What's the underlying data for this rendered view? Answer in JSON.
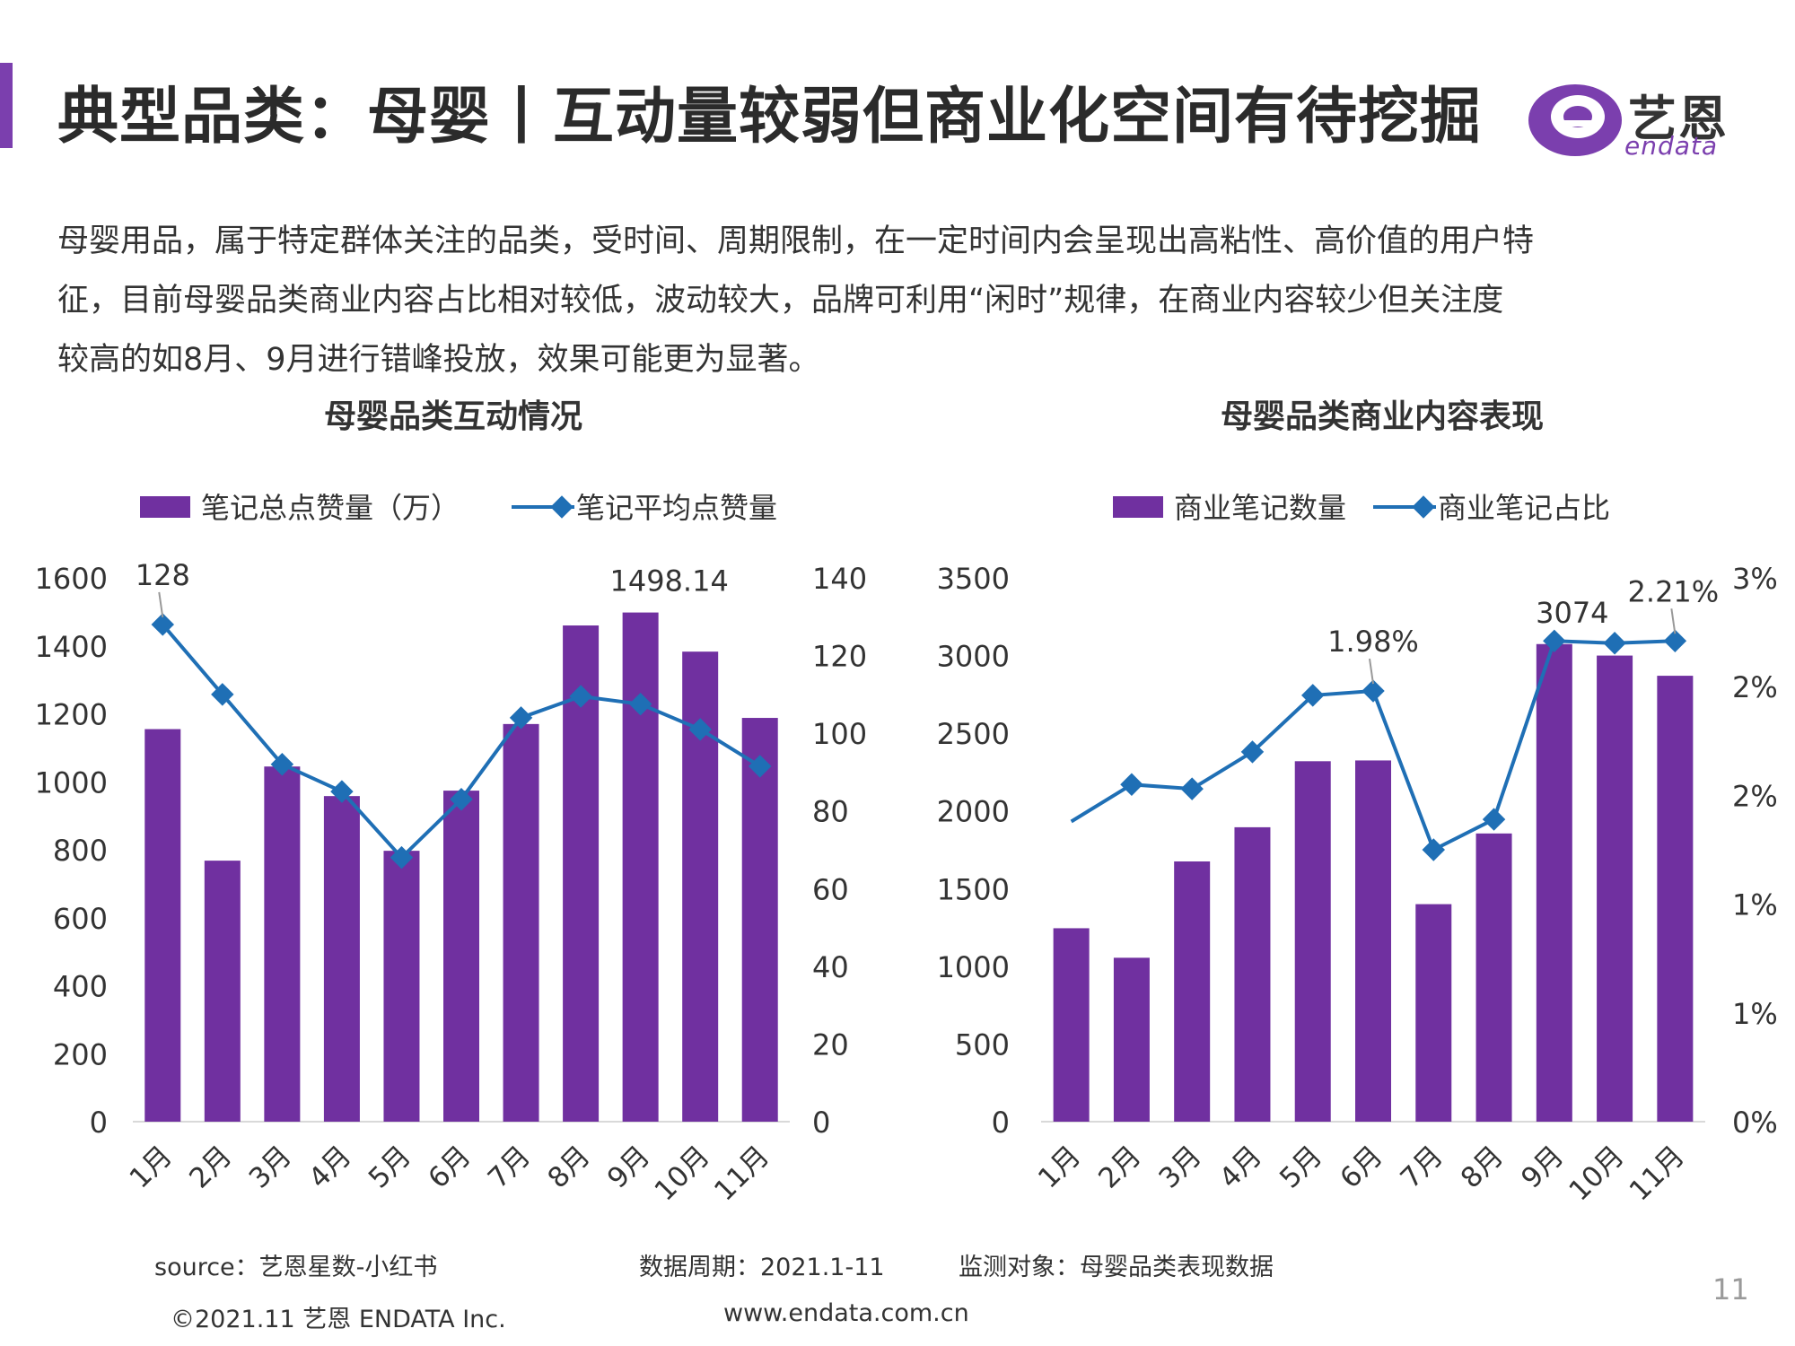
{
  "header": {
    "title": "典型品类：母婴丨互动量较弱但商业化空间有待挖掘",
    "logo_name": "艺恩",
    "logo_sub": "endata"
  },
  "intro": {
    "lines": [
      "母婴用品，属于特定群体关注的品类，受时间、周期限制，在一定时间内会呈现出高粘性、高价值的用户特",
      "征，目前母婴品类商业内容占比相对较低，波动较大，品牌可利用“闲时”规律，在商业内容较少但关注度",
      "较高的如8月、9月进行错峰投放，效果可能更为显著。"
    ]
  },
  "colors": {
    "bar": "#7030a0",
    "line": "#1f6fb5",
    "accent": "#7b3fae"
  },
  "chart_data": [
    {
      "type": "bar",
      "title": "母婴品类互动情况",
      "categories": [
        "1月",
        "2月",
        "3月",
        "4月",
        "5月",
        "6月",
        "7月",
        "8月",
        "9月",
        "10月",
        "11月"
      ],
      "series": [
        {
          "name": "笔记总点赞量（万）",
          "kind": "bar",
          "axis": "left",
          "values": [
            1155,
            768,
            1045,
            958,
            797,
            974,
            1170,
            1460,
            1498.14,
            1383,
            1188
          ]
        },
        {
          "name": "笔记平均点赞量",
          "kind": "line",
          "axis": "right",
          "values": [
            128,
            110,
            92,
            85,
            68,
            83,
            104,
            109.5,
            107.5,
            101,
            91.5
          ]
        }
      ],
      "y_left": {
        "min": 0,
        "max": 1600,
        "ticks": [
          "0",
          "200",
          "400",
          "600",
          "800",
          "1000",
          "1200",
          "1400",
          "1600"
        ]
      },
      "y_right": {
        "min": 0,
        "max": 140,
        "ticks": [
          "0",
          "20",
          "40",
          "60",
          "80",
          "100",
          "120",
          "140"
        ]
      },
      "annotations": [
        {
          "series": "line",
          "index": 0,
          "text": "128"
        },
        {
          "series": "bar",
          "index": 8,
          "text": "1498.14"
        }
      ],
      "legend_position": "top"
    },
    {
      "type": "bar",
      "title": "母婴品类商业内容表现",
      "categories": [
        "1月",
        "2月",
        "3月",
        "4月",
        "5月",
        "6月",
        "7月",
        "8月",
        "9月",
        "10月",
        "11月"
      ],
      "series": [
        {
          "name": "商业笔记数量",
          "kind": "bar",
          "axis": "left",
          "values": [
            1245,
            1055,
            1675,
            1895,
            2320,
            2325,
            1400,
            1855,
            3074,
            3000,
            2870
          ]
        },
        {
          "name": "商业笔记占比",
          "kind": "line",
          "axis": "right",
          "values": [
            1.38,
            1.55,
            1.53,
            1.7,
            1.96,
            1.98,
            1.25,
            1.39,
            2.21,
            2.2,
            2.21
          ]
        }
      ],
      "y_left": {
        "min": 0,
        "max": 3500,
        "ticks": [
          "0",
          "500",
          "1000",
          "1500",
          "2000",
          "2500",
          "3000",
          "3500"
        ]
      },
      "y_right": {
        "min": 0,
        "max": 2.5,
        "ticks": [
          "0%",
          "1%",
          "1%",
          "2%",
          "2%",
          "3%"
        ]
      },
      "annotations": [
        {
          "series": "line",
          "index": 5,
          "text": "1.98%"
        },
        {
          "series": "bar",
          "index": 8,
          "text": "3074"
        },
        {
          "series": "line",
          "index": 10,
          "text": "2.21%"
        }
      ],
      "legend_position": "top"
    }
  ],
  "footer": {
    "source": "source：艺恩星数-小红书",
    "period": "数据周期：2021.1-11",
    "object": "监测对象：母婴品类表现数据",
    "copyright": "©2021.11 艺恩 ENDATA Inc.",
    "website": "www.endata.com.cn",
    "page": "11"
  }
}
